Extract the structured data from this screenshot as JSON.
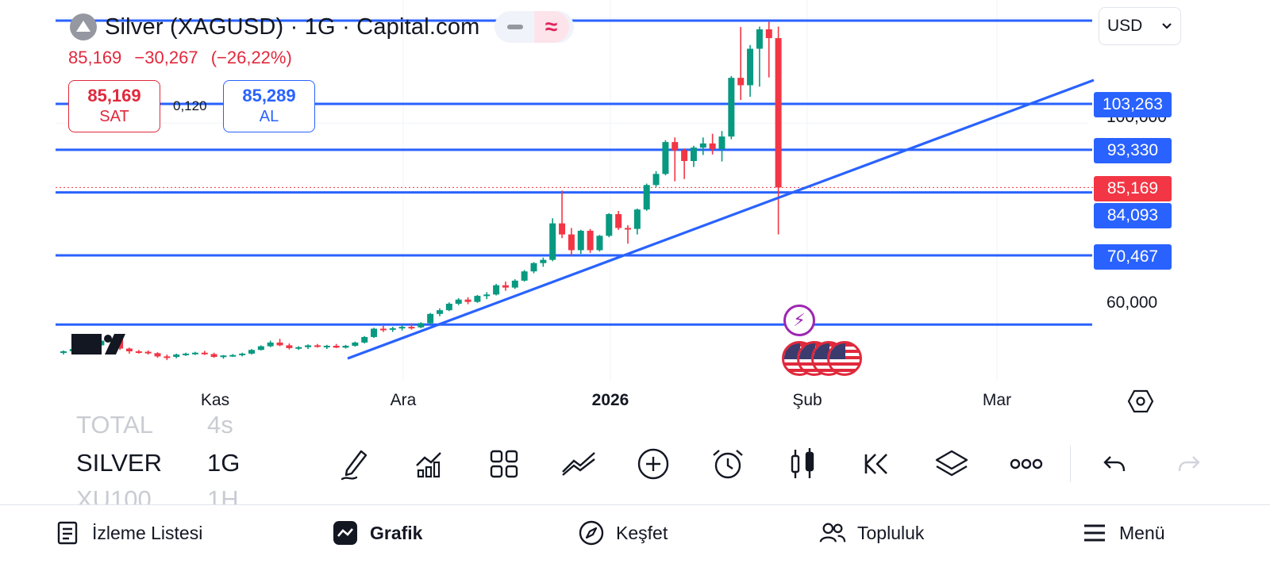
{
  "header": {
    "symbol_title": "Silver (XAGUSD) · 1G · Capital.com",
    "wave_icon": "≈"
  },
  "price_change": {
    "last": "85,169",
    "change": "−30,267",
    "change_pct": "(−26,22%)"
  },
  "trade": {
    "sell_price": "85,169",
    "sell_label": "SAT",
    "spread": "0,120",
    "buy_price": "85,289",
    "buy_label": "AL"
  },
  "currency": {
    "selected": "USD"
  },
  "price_axis": {
    "levels": [
      "100,000",
      "60,000"
    ],
    "tags": [
      {
        "value": "103,263",
        "color": "#2962ff"
      },
      {
        "value": "93,330",
        "color": "#2962ff"
      },
      {
        "value": "85,169",
        "color": "#f23645"
      },
      {
        "value": "84,093",
        "color": "#2962ff"
      },
      {
        "value": "70,467",
        "color": "#2962ff"
      }
    ]
  },
  "time_axis": [
    "Kas",
    "Ara",
    "2026",
    "Şub",
    "Mar"
  ],
  "events": {
    "lightning_icon": "⚡"
  },
  "watchlist": [
    {
      "symbol": "TOTAL",
      "interval": "4s",
      "faded": true
    },
    {
      "symbol": "SILVER",
      "interval": "1G",
      "faded": false
    },
    {
      "symbol": "XU100",
      "interval": "1H",
      "faded": true
    }
  ],
  "toolbar": [
    "draw-icon",
    "indicators-icon",
    "layouts-icon",
    "trend-tools-icon",
    "add-icon",
    "alert-icon",
    "candles-icon",
    "replay-icon",
    "layers-icon",
    "more-icon",
    "undo-icon",
    "redo-icon"
  ],
  "bottom_nav": {
    "watchlist": "İzleme Listesi",
    "chart": "Grafik",
    "explore": "Keşfet",
    "community": "Topluluk",
    "menu": "Menü"
  },
  "colors": {
    "up": "#089981",
    "down": "#f23645",
    "line": "#2962ff"
  },
  "chart_data": {
    "type": "candlestick",
    "symbol": "XAGUSD",
    "interval": "1G",
    "x_labels": [
      "Kas",
      "Ara",
      "2026",
      "Şub",
      "Mar"
    ],
    "y_ticks": [
      60,
      100
    ],
    "horizontal_levels": [
      103.263,
      93.33,
      84.093,
      70.467,
      55.5
    ],
    "last_price": 85.169,
    "candles": [
      [
        49.5,
        49.9,
        49.0,
        49.7
      ],
      [
        49.7,
        50.4,
        49.5,
        50.2
      ],
      [
        50.2,
        50.6,
        49.8,
        50.0
      ],
      [
        50.0,
        51.2,
        49.9,
        51.0
      ],
      [
        51.0,
        52.3,
        50.8,
        52.0
      ],
      [
        52.0,
        52.9,
        51.7,
        52.5
      ],
      [
        52.5,
        52.8,
        50.0,
        50.3
      ],
      [
        50.3,
        50.5,
        49.2,
        49.7
      ],
      [
        49.7,
        50.0,
        49.2,
        49.6
      ],
      [
        49.6,
        49.9,
        49.0,
        49.3
      ],
      [
        49.3,
        49.5,
        48.3,
        48.6
      ],
      [
        48.6,
        49.0,
        47.8,
        48.5
      ],
      [
        48.5,
        49.2,
        48.2,
        49.0
      ],
      [
        49.0,
        49.4,
        48.7,
        49.2
      ],
      [
        49.2,
        49.6,
        48.9,
        49.4
      ],
      [
        49.4,
        49.8,
        48.9,
        49.1
      ],
      [
        49.1,
        49.4,
        48.3,
        48.5
      ],
      [
        48.5,
        48.9,
        48.1,
        48.8
      ],
      [
        48.8,
        49.1,
        48.5,
        48.9
      ],
      [
        48.9,
        49.4,
        48.6,
        49.2
      ],
      [
        49.2,
        50.2,
        49.0,
        50.0
      ],
      [
        50.0,
        51.0,
        49.9,
        50.8
      ],
      [
        50.8,
        52.0,
        50.6,
        51.6
      ],
      [
        51.6,
        52.4,
        50.8,
        51.0
      ],
      [
        51.0,
        51.4,
        50.1,
        50.4
      ],
      [
        50.4,
        50.8,
        50.0,
        50.6
      ],
      [
        50.6,
        51.2,
        50.2,
        51.0
      ],
      [
        51.0,
        51.3,
        50.5,
        50.7
      ],
      [
        50.7,
        51.1,
        50.2,
        50.9
      ],
      [
        50.9,
        51.3,
        50.4,
        50.5
      ],
      [
        50.5,
        51.1,
        50.3,
        50.9
      ],
      [
        50.9,
        51.8,
        50.7,
        51.6
      ],
      [
        51.6,
        53.0,
        51.4,
        52.8
      ],
      [
        52.8,
        54.8,
        52.6,
        54.6
      ],
      [
        54.6,
        55.2,
        53.9,
        54.4
      ],
      [
        54.4,
        55.0,
        53.9,
        54.7
      ],
      [
        54.7,
        55.4,
        54.2,
        55.0
      ],
      [
        55.0,
        55.8,
        54.4,
        54.9
      ],
      [
        54.9,
        56.0,
        54.7,
        55.8
      ],
      [
        55.8,
        58.0,
        55.6,
        57.8
      ],
      [
        57.8,
        59.0,
        57.3,
        58.6
      ],
      [
        58.6,
        60.3,
        58.4,
        60.0
      ],
      [
        60.0,
        61.2,
        59.7,
        60.9
      ],
      [
        60.9,
        61.4,
        59.9,
        60.4
      ],
      [
        60.4,
        61.9,
        60.2,
        61.7
      ],
      [
        61.7,
        62.5,
        61.0,
        62.0
      ],
      [
        62.0,
        64.3,
        61.8,
        64.0
      ],
      [
        64.0,
        64.8,
        62.8,
        63.5
      ],
      [
        63.5,
        65.3,
        63.2,
        65.0
      ],
      [
        65.0,
        67.3,
        64.8,
        67.0
      ],
      [
        67.0,
        69.0,
        66.6,
        68.8
      ],
      [
        68.8,
        70.0,
        68.0,
        69.5
      ],
      [
        69.5,
        78.5,
        69.2,
        77.4
      ],
      [
        77.4,
        84.5,
        74.2,
        75.0
      ],
      [
        75.0,
        76.4,
        70.5,
        71.6
      ],
      [
        71.6,
        76.0,
        70.8,
        75.8
      ],
      [
        75.8,
        76.2,
        71.0,
        71.6
      ],
      [
        71.6,
        74.9,
        71.3,
        74.7
      ],
      [
        74.7,
        79.6,
        74.4,
        79.4
      ],
      [
        79.4,
        80.1,
        76.0,
        76.4
      ],
      [
        76.4,
        77.0,
        73.0,
        76.2
      ],
      [
        76.2,
        80.6,
        75.0,
        80.4
      ],
      [
        80.4,
        86.0,
        80.1,
        85.7
      ],
      [
        85.7,
        88.7,
        85.3,
        88.1
      ],
      [
        88.1,
        95.4,
        87.8,
        95.0
      ],
      [
        95.0,
        96.0,
        86.5,
        93.2
      ],
      [
        93.2,
        93.6,
        87.0,
        90.9
      ],
      [
        90.9,
        94.2,
        89.6,
        93.8
      ],
      [
        93.8,
        96.0,
        92.2,
        94.7
      ],
      [
        94.7,
        96.8,
        92.3,
        93.5
      ],
      [
        93.5,
        97.4,
        90.8,
        96.2
      ],
      [
        96.2,
        109.3,
        95.6,
        108.9
      ],
      [
        108.9,
        119.9,
        104.1,
        107.3
      ],
      [
        107.3,
        116.0,
        104.8,
        115.2
      ],
      [
        115.2,
        120.0,
        107.0,
        119.4
      ],
      [
        119.4,
        121.0,
        109.0,
        117.5
      ],
      [
        117.5,
        120.0,
        75.0,
        85.169
      ]
    ]
  }
}
